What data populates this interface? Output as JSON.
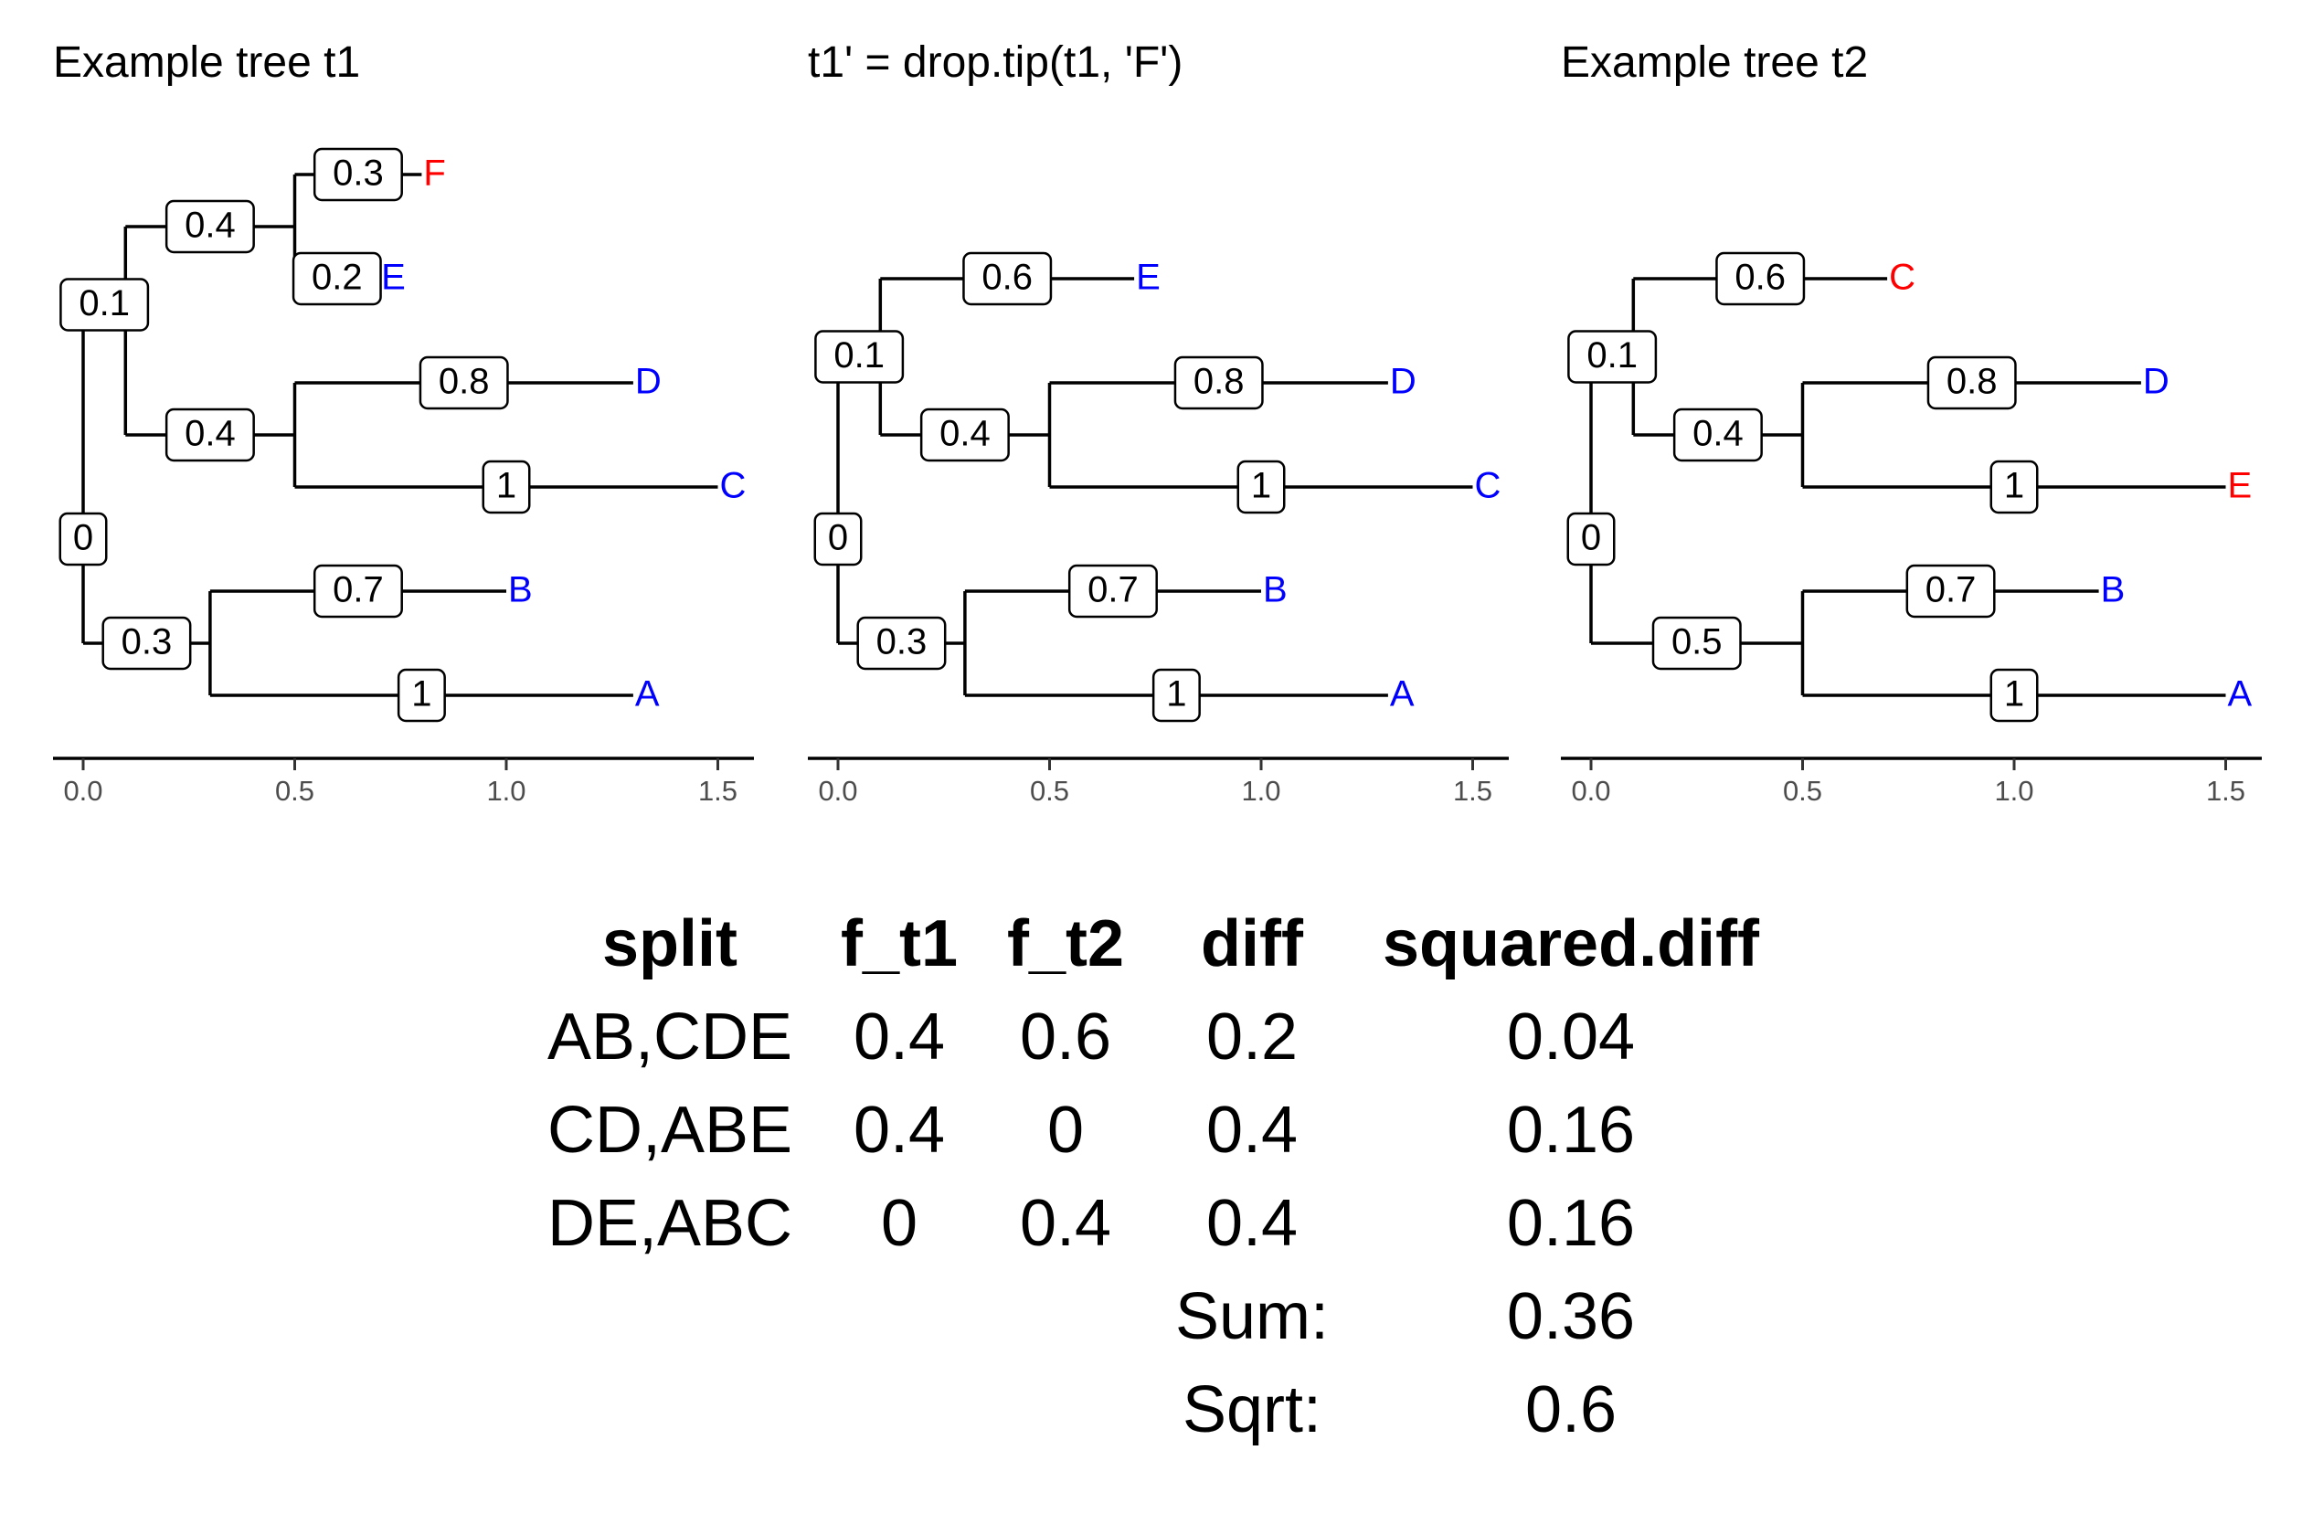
{
  "colors": {
    "highlight": "#ff0000",
    "tip": "#0000ff",
    "line": "#000000"
  },
  "panels": [
    {
      "title": "Example tree t1",
      "axis_ticks": [
        "0.0",
        "0.5",
        "1.0",
        "1.5"
      ],
      "nodes": [
        {
          "id": "root",
          "parent": null,
          "x": 0,
          "y": 3.5,
          "label": "0"
        },
        {
          "id": "n1",
          "parent": "root",
          "x": 0.1,
          "y": 5.75,
          "label": "0.1"
        },
        {
          "id": "n2",
          "parent": "n1",
          "x": 0.5,
          "y": 6.5,
          "label": "0.4"
        },
        {
          "id": "tF",
          "parent": "n2",
          "x": 0.8,
          "y": 7,
          "label": "0.3",
          "tip": "F",
          "hl": true
        },
        {
          "id": "tE",
          "parent": "n2",
          "x": 0.7,
          "y": 6,
          "label": "0.2",
          "tip": "E",
          "hl": false
        },
        {
          "id": "n3",
          "parent": "n1",
          "x": 0.5,
          "y": 4.5,
          "label": "0.4"
        },
        {
          "id": "tD",
          "parent": "n3",
          "x": 1.3,
          "y": 5,
          "label": "0.8",
          "tip": "D",
          "hl": false
        },
        {
          "id": "tC",
          "parent": "n3",
          "x": 1.5,
          "y": 4,
          "label": "1",
          "tip": "C",
          "hl": false
        },
        {
          "id": "n4",
          "parent": "root",
          "x": 0.3,
          "y": 2.5,
          "label": "0.3"
        },
        {
          "id": "tB",
          "parent": "n4",
          "x": 1.0,
          "y": 3,
          "label": "0.7",
          "tip": "B",
          "hl": false
        },
        {
          "id": "tA",
          "parent": "n4",
          "x": 1.3,
          "y": 2,
          "label": "1",
          "tip": "A",
          "hl": false
        }
      ]
    },
    {
      "title": "t1' = drop.tip(t1, 'F')",
      "axis_ticks": [
        "0.0",
        "0.5",
        "1.0",
        "1.5"
      ],
      "nodes": [
        {
          "id": "root",
          "parent": null,
          "x": 0,
          "y": 3.5,
          "label": "0"
        },
        {
          "id": "n1",
          "parent": "root",
          "x": 0.1,
          "y": 5.25,
          "label": "0.1"
        },
        {
          "id": "tE",
          "parent": "n1",
          "x": 0.7,
          "y": 6,
          "label": "0.6",
          "tip": "E",
          "hl": false
        },
        {
          "id": "n3",
          "parent": "n1",
          "x": 0.5,
          "y": 4.5,
          "label": "0.4"
        },
        {
          "id": "tD",
          "parent": "n3",
          "x": 1.3,
          "y": 5,
          "label": "0.8",
          "tip": "D",
          "hl": false
        },
        {
          "id": "tC",
          "parent": "n3",
          "x": 1.5,
          "y": 4,
          "label": "1",
          "tip": "C",
          "hl": false
        },
        {
          "id": "n4",
          "parent": "root",
          "x": 0.3,
          "y": 2.5,
          "label": "0.3"
        },
        {
          "id": "tB",
          "parent": "n4",
          "x": 1.0,
          "y": 3,
          "label": "0.7",
          "tip": "B",
          "hl": false
        },
        {
          "id": "tA",
          "parent": "n4",
          "x": 1.3,
          "y": 2,
          "label": "1",
          "tip": "A",
          "hl": false
        }
      ]
    },
    {
      "title": "Example tree t2",
      "axis_ticks": [
        "0.0",
        "0.5",
        "1.0",
        "1.5"
      ],
      "nodes": [
        {
          "id": "root",
          "parent": null,
          "x": 0,
          "y": 3.5,
          "label": "0"
        },
        {
          "id": "n1",
          "parent": "root",
          "x": 0.1,
          "y": 5.25,
          "label": "0.1"
        },
        {
          "id": "tC",
          "parent": "n1",
          "x": 0.7,
          "y": 6,
          "label": "0.6",
          "tip": "C",
          "hl": true
        },
        {
          "id": "n3",
          "parent": "n1",
          "x": 0.5,
          "y": 4.5,
          "label": "0.4"
        },
        {
          "id": "tD",
          "parent": "n3",
          "x": 1.3,
          "y": 5,
          "label": "0.8",
          "tip": "D",
          "hl": false
        },
        {
          "id": "tE",
          "parent": "n3",
          "x": 1.5,
          "y": 4,
          "label": "1",
          "tip": "E",
          "hl": true
        },
        {
          "id": "n4",
          "parent": "root",
          "x": 0.5,
          "y": 2.5,
          "label": "0.5"
        },
        {
          "id": "tB",
          "parent": "n4",
          "x": 1.2,
          "y": 3,
          "label": "0.7",
          "tip": "B",
          "hl": false
        },
        {
          "id": "tA",
          "parent": "n4",
          "x": 1.5,
          "y": 2,
          "label": "1",
          "tip": "A",
          "hl": false
        }
      ]
    }
  ],
  "split_table": {
    "headers": [
      "split",
      "f_t1",
      "f_t2",
      "diff",
      "squared.diff"
    ],
    "rows": [
      [
        "AB,CDE",
        "0.4",
        "0.6",
        "0.2",
        "0.04"
      ],
      [
        "CD,ABE",
        "0.4",
        "0",
        "0.4",
        "0.16"
      ],
      [
        "DE,ABC",
        "0",
        "0.4",
        "0.4",
        "0.16"
      ]
    ],
    "sum_label": "Sum:",
    "sum_value": "0.36",
    "sqrt_label": "Sqrt:",
    "sqrt_value": "0.6"
  }
}
